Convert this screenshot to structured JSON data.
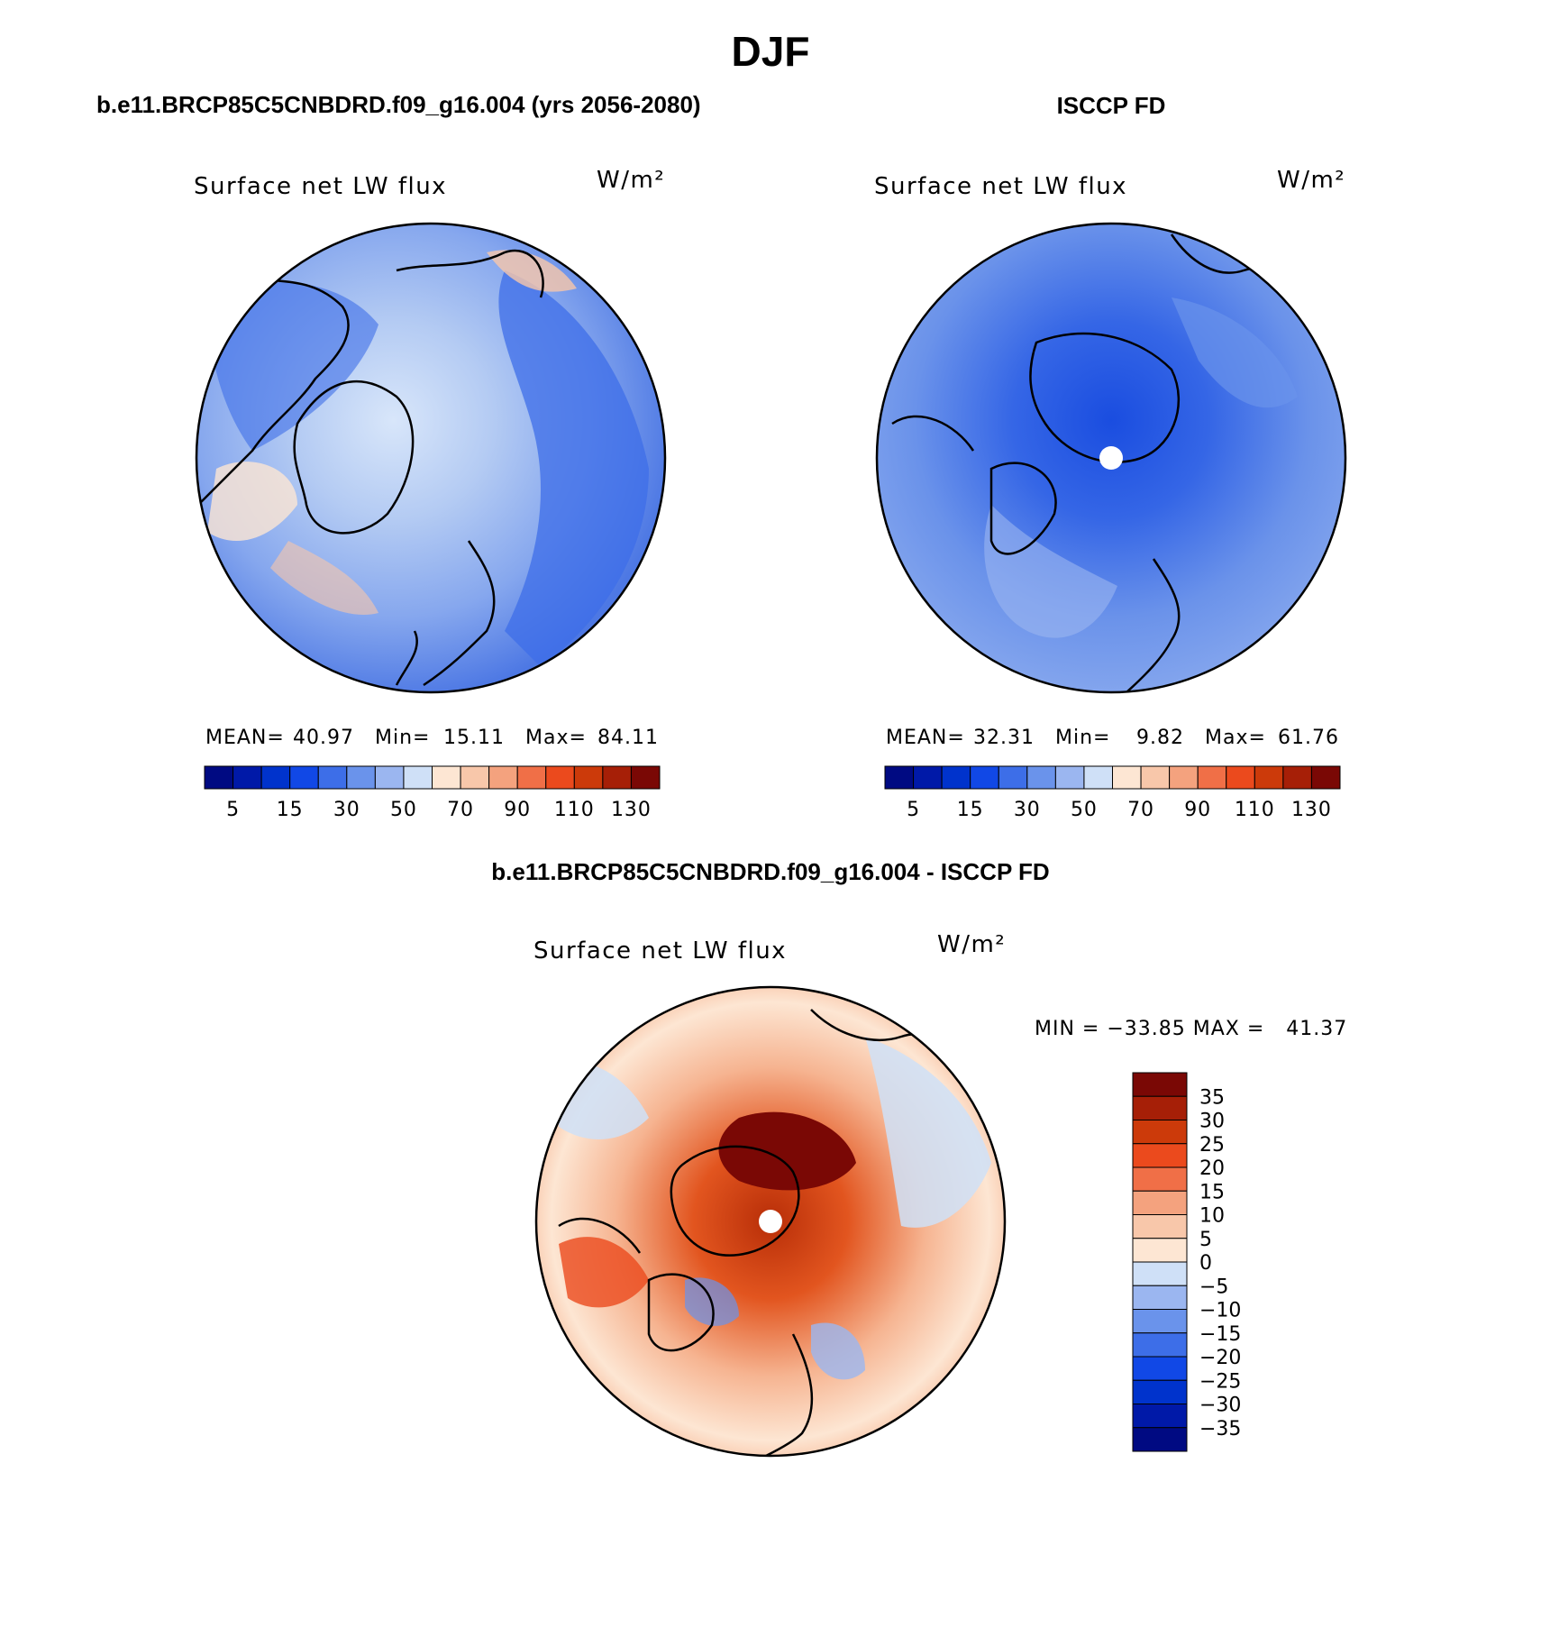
{
  "page_title": "DJF",
  "panels": [
    {
      "id": "model",
      "header": "b.e11.BRCP85C5CNBDRD.f09_g16.004 (yrs 2056-2080)",
      "variable": "Surface net LW flux",
      "units": "W/m²",
      "stats": {
        "mean_label": "MEAN=",
        "mean": "40.97",
        "min_label": "Min=",
        "min": "15.11",
        "max_label": "Max=",
        "max": "84.11"
      }
    },
    {
      "id": "obs",
      "header": "ISCCP FD",
      "variable": "Surface net LW flux",
      "units": "W/m²",
      "stats": {
        "mean_label": "MEAN=",
        "mean": "32.31",
        "min_label": "Min=",
        "min": "9.82",
        "max_label": "Max=",
        "max": "61.76"
      }
    },
    {
      "id": "diff",
      "header": "b.e11.BRCP85C5CNBDRD.f09_g16.004 - ISCCP FD",
      "variable": "Surface net LW flux",
      "units": "W/m²",
      "minmax_text": "MIN = −33.85 MAX =   41.37"
    }
  ],
  "chart_data": [
    {
      "type": "heatmap",
      "title": "Surface net LW flux",
      "subtitle": "b.e11.BRCP85C5CNBDRD.f09_g16.004 (yrs 2056-2080)",
      "projection": "north polar stereographic",
      "units": "W/m²",
      "mean": 40.97,
      "min": 15.11,
      "max": 84.11,
      "colorbar_ticks": [
        "5",
        "15",
        "30",
        "50",
        "70",
        "90",
        "110",
        "130"
      ],
      "levels": [
        5,
        10,
        15,
        20,
        30,
        40,
        50,
        60,
        70,
        80,
        90,
        100,
        110,
        120,
        130
      ]
    },
    {
      "type": "heatmap",
      "title": "Surface net LW flux",
      "subtitle": "ISCCP FD",
      "projection": "north polar stereographic",
      "units": "W/m²",
      "mean": 32.31,
      "min": 9.82,
      "max": 61.76,
      "colorbar_ticks": [
        "5",
        "15",
        "30",
        "50",
        "70",
        "90",
        "110",
        "130"
      ],
      "levels": [
        5,
        10,
        15,
        20,
        30,
        40,
        50,
        60,
        70,
        80,
        90,
        100,
        110,
        120,
        130
      ]
    },
    {
      "type": "heatmap",
      "title": "Surface net LW flux",
      "subtitle": "b.e11.BRCP85C5CNBDRD.f09_g16.004 - ISCCP FD",
      "projection": "north polar stereographic",
      "units": "W/m²",
      "min": -33.85,
      "max": 41.37,
      "colorbar_ticks": [
        "35",
        "30",
        "25",
        "20",
        "15",
        "10",
        "5",
        "0",
        "−5",
        "−10",
        "−15",
        "−20",
        "−25",
        "−30",
        "−35"
      ]
    }
  ],
  "colors": {
    "seq16": [
      "#000a82",
      "#0019a8",
      "#0033cc",
      "#1148e6",
      "#3d6ee8",
      "#6a93eb",
      "#9bb6f0",
      "#cfe0f7",
      "#fde6d3",
      "#f8c7aa",
      "#f4a27e",
      "#f06f47",
      "#eb4a1d",
      "#cc3a0a",
      "#a61f07",
      "#7a0805"
    ],
    "div16": [
      "#7a0805",
      "#a61f07",
      "#cc3a0a",
      "#eb4a1d",
      "#f06f47",
      "#f4a27e",
      "#f8c7aa",
      "#fde6d3",
      "#cfe0f7",
      "#9bb6f0",
      "#6a93eb",
      "#3d6ee8",
      "#1148e6",
      "#0033cc",
      "#0019a8",
      "#000a82"
    ]
  }
}
